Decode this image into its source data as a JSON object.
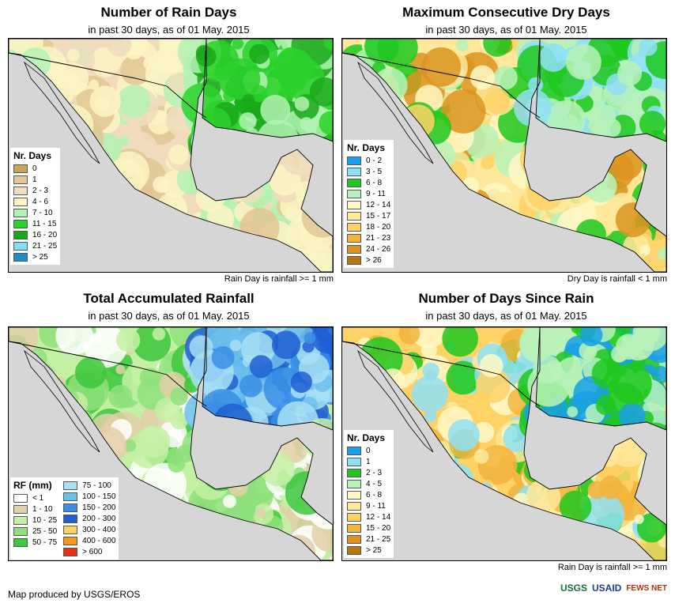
{
  "panels": [
    {
      "title": "Number of Rain Days",
      "subtitle": "in past 30 days, as of 01 May. 2015",
      "note": "Rain Day is rainfall >= 1 mm",
      "legend": {
        "title": "Nr. Days",
        "items": [
          {
            "label": "0",
            "color": "#c9a25c"
          },
          {
            "label": "1",
            "color": "#e0c794"
          },
          {
            "label": "2 - 3",
            "color": "#f0dcbc"
          },
          {
            "label": "4 - 6",
            "color": "#fbf5c3"
          },
          {
            "label": "7 - 10",
            "color": "#b3f2b3"
          },
          {
            "label": "11 - 15",
            "color": "#2ad12a"
          },
          {
            "label": "16 - 20",
            "color": "#1aa81a"
          },
          {
            "label": "21 - 25",
            "color": "#80e0f0"
          },
          {
            "label": "> 25",
            "color": "#1d8ec4"
          }
        ]
      }
    },
    {
      "title": "Maximum Consecutive Dry Days",
      "subtitle": "in past 30 days, as of 01 May. 2015",
      "note": "Dry Day is rainfall < 1 mm",
      "legend": {
        "title": "Nr. Days",
        "items": [
          {
            "label": "0 - 2",
            "color": "#1aa0e6"
          },
          {
            "label": "3 - 5",
            "color": "#8fe0f5"
          },
          {
            "label": "6 - 8",
            "color": "#1ec81e"
          },
          {
            "label": "9 - 11",
            "color": "#b8f2b8"
          },
          {
            "label": "12 - 14",
            "color": "#fff8c4"
          },
          {
            "label": "15 - 17",
            "color": "#ffe89a"
          },
          {
            "label": "18 - 20",
            "color": "#ffd266"
          },
          {
            "label": "21 - 23",
            "color": "#f2b43c"
          },
          {
            "label": "24 - 26",
            "color": "#dc9420"
          },
          {
            "label": "> 26",
            "color": "#b8780e"
          }
        ]
      }
    },
    {
      "title": "Total Accumulated Rainfall",
      "subtitle": "in past 30 days, as of 01 May. 2015",
      "note": "",
      "legend": {
        "title": "RF (mm)",
        "items": [
          {
            "label": "< 1",
            "color": "#ffffff"
          },
          {
            "label": "1 - 10",
            "color": "#e3cfa8"
          },
          {
            "label": "10 - 25",
            "color": "#c4f0a4"
          },
          {
            "label": "25 - 50",
            "color": "#8ee07a"
          },
          {
            "label": "50 - 75",
            "color": "#3cc83c"
          }
        ],
        "items2": [
          {
            "label": "75 - 100",
            "color": "#a8e0f5"
          },
          {
            "label": "100 - 150",
            "color": "#6cc0ec"
          },
          {
            "label": "150 - 200",
            "color": "#3a8ee6"
          },
          {
            "label": "200 - 300",
            "color": "#1e5fd2"
          },
          {
            "label": "300 - 400",
            "color": "#f7d264"
          },
          {
            "label": "400 - 600",
            "color": "#f5961e"
          },
          {
            "label": "> 600",
            "color": "#e63214"
          }
        ]
      }
    },
    {
      "title": "Number of Days Since Rain",
      "subtitle": "in past 30 days, as of 01 May. 2015",
      "note": "Rain Day is rainfall >= 1 mm",
      "legend": {
        "title": "Nr. Days",
        "items": [
          {
            "label": "0",
            "color": "#1aa0e6"
          },
          {
            "label": "1",
            "color": "#8fe0f5"
          },
          {
            "label": "2 - 3",
            "color": "#1ec81e"
          },
          {
            "label": "4 - 5",
            "color": "#b8f2b8"
          },
          {
            "label": "6 - 8",
            "color": "#fff8c4"
          },
          {
            "label": "9 - 11",
            "color": "#ffe89a"
          },
          {
            "label": "12 - 14",
            "color": "#ffd266"
          },
          {
            "label": "15 - 20",
            "color": "#f2b43c"
          },
          {
            "label": "21 - 25",
            "color": "#dc9420"
          },
          {
            "label": "> 25",
            "color": "#b8780e"
          }
        ]
      }
    }
  ],
  "footer": "Map produced by USGS/EROS",
  "logos": {
    "usgs": "USGS",
    "usaid": "USAID",
    "fewsnet": "FEWS NET"
  },
  "colors": {
    "ocean": "#d6d6d6",
    "border": "#000000"
  }
}
